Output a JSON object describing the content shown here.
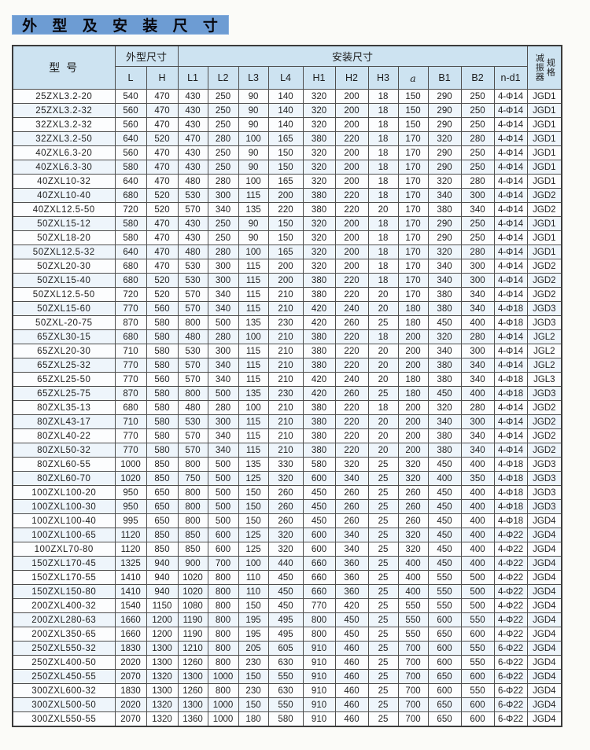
{
  "title": "外 型 及 安 装 尺 寸",
  "table": {
    "header": {
      "model": "型  号",
      "outline_group": "外型尺寸",
      "install_group": "安装尺寸",
      "damper_vertical_left": "减振器",
      "damper_vertical_right": "规格",
      "columns": [
        "L",
        "H",
        "L1",
        "L2",
        "L3",
        "L4",
        "H1",
        "H2",
        "H3",
        "a",
        "B1",
        "B2",
        "n-d1"
      ]
    },
    "rows": [
      [
        "25ZXL3.2-20",
        540,
        470,
        430,
        250,
        90,
        140,
        320,
        200,
        18,
        150,
        290,
        250,
        "4-Φ14",
        "JGD1"
      ],
      [
        "25ZXL3.2-32",
        560,
        470,
        430,
        250,
        90,
        140,
        320,
        200,
        18,
        150,
        290,
        250,
        "4-Φ14",
        "JGD1"
      ],
      [
        "32ZXL3.2-32",
        560,
        470,
        430,
        250,
        90,
        140,
        320,
        200,
        18,
        150,
        290,
        250,
        "4-Φ14",
        "JGD1"
      ],
      [
        "32ZXL3.2-50",
        640,
        520,
        470,
        280,
        100,
        165,
        380,
        220,
        18,
        170,
        320,
        280,
        "4-Φ14",
        "JGD1"
      ],
      [
        "40ZXL6.3-20",
        560,
        470,
        430,
        250,
        90,
        150,
        320,
        200,
        18,
        170,
        290,
        250,
        "4-Φ14",
        "JGD1"
      ],
      [
        "40ZXL6.3-30",
        580,
        470,
        430,
        250,
        90,
        150,
        320,
        200,
        18,
        170,
        290,
        250,
        "4-Φ14",
        "JGD1"
      ],
      [
        "40ZXL10-32",
        640,
        470,
        480,
        280,
        100,
        165,
        320,
        200,
        18,
        170,
        320,
        280,
        "4-Φ14",
        "JGD1"
      ],
      [
        "40ZXL10-40",
        680,
        520,
        530,
        300,
        115,
        200,
        380,
        220,
        18,
        170,
        340,
        300,
        "4-Φ14",
        "JGD2"
      ],
      [
        "40ZXL12.5-50",
        720,
        520,
        570,
        340,
        135,
        220,
        380,
        220,
        20,
        170,
        380,
        340,
        "4-Φ14",
        "JGD2"
      ],
      [
        "50ZXL15-12",
        580,
        470,
        430,
        250,
        90,
        150,
        320,
        200,
        18,
        170,
        290,
        250,
        "4-Φ14",
        "JGD1"
      ],
      [
        "50ZXL18-20",
        580,
        470,
        430,
        250,
        90,
        150,
        320,
        200,
        18,
        170,
        290,
        250,
        "4-Φ14",
        "JGD1"
      ],
      [
        "50ZXL12.5-32",
        640,
        470,
        480,
        280,
        100,
        165,
        320,
        200,
        18,
        170,
        320,
        280,
        "4-Φ14",
        "JGD1"
      ],
      [
        "50ZXL20-30",
        680,
        470,
        530,
        300,
        115,
        200,
        320,
        200,
        18,
        170,
        340,
        300,
        "4-Φ14",
        "JGD2"
      ],
      [
        "50ZXL15-40",
        680,
        520,
        530,
        300,
        115,
        200,
        380,
        220,
        18,
        170,
        340,
        300,
        "4-Φ14",
        "JGD2"
      ],
      [
        "50ZXL12.5-50",
        720,
        520,
        570,
        340,
        115,
        210,
        380,
        220,
        20,
        170,
        380,
        340,
        "4-Φ14",
        "JGD2"
      ],
      [
        "50ZXL15-60",
        770,
        560,
        570,
        340,
        115,
        210,
        420,
        240,
        20,
        180,
        380,
        340,
        "4-Φ18",
        "JGD3"
      ],
      [
        "50ZXL-20-75",
        870,
        580,
        800,
        500,
        135,
        230,
        420,
        260,
        25,
        180,
        450,
        400,
        "4-Φ18",
        "JGD3"
      ],
      [
        "65ZXL30-15",
        680,
        580,
        480,
        280,
        100,
        210,
        380,
        220,
        18,
        200,
        320,
        280,
        "4-Φ14",
        "JGL2"
      ],
      [
        "65ZXL20-30",
        710,
        580,
        530,
        300,
        115,
        210,
        380,
        220,
        20,
        200,
        340,
        300,
        "4-Φ14",
        "JGL2"
      ],
      [
        "65ZXL25-32",
        770,
        580,
        570,
        340,
        115,
        210,
        380,
        220,
        20,
        200,
        380,
        340,
        "4-Φ14",
        "JGL2"
      ],
      [
        "65ZXL25-50",
        770,
        560,
        570,
        340,
        115,
        210,
        420,
        240,
        20,
        180,
        380,
        340,
        "4-Φ18",
        "JGL3"
      ],
      [
        "65ZXL25-75",
        870,
        580,
        800,
        500,
        135,
        230,
        420,
        260,
        25,
        180,
        450,
        400,
        "4-Φ18",
        "JGD3"
      ],
      [
        "80ZXL35-13",
        680,
        580,
        480,
        280,
        100,
        210,
        380,
        220,
        18,
        200,
        320,
        280,
        "4-Φ14",
        "JGD2"
      ],
      [
        "80ZXL43-17",
        710,
        580,
        530,
        300,
        115,
        210,
        380,
        220,
        20,
        200,
        340,
        300,
        "4-Φ14",
        "JGD2"
      ],
      [
        "80ZXL40-22",
        770,
        580,
        570,
        340,
        115,
        210,
        380,
        220,
        20,
        200,
        380,
        340,
        "4-Φ14",
        "JGD2"
      ],
      [
        "80ZXL50-32",
        770,
        580,
        570,
        340,
        115,
        210,
        380,
        220,
        20,
        200,
        380,
        340,
        "4-Φ14",
        "JGD2"
      ],
      [
        "80ZXL60-55",
        1000,
        850,
        800,
        500,
        135,
        330,
        580,
        320,
        25,
        320,
        450,
        400,
        "4-Φ18",
        "JGD3"
      ],
      [
        "80ZXL60-70",
        1020,
        850,
        750,
        500,
        125,
        320,
        600,
        340,
        25,
        320,
        400,
        350,
        "4-Φ18",
        "JGD3"
      ],
      [
        "100ZXL100-20",
        950,
        650,
        800,
        500,
        150,
        260,
        450,
        260,
        25,
        260,
        450,
        400,
        "4-Φ18",
        "JGD3"
      ],
      [
        "100ZXL100-30",
        950,
        650,
        800,
        500,
        150,
        260,
        450,
        260,
        25,
        260,
        450,
        400,
        "4-Φ18",
        "JGD3"
      ],
      [
        "100ZXL100-40",
        995,
        650,
        800,
        500,
        150,
        260,
        450,
        260,
        25,
        260,
        450,
        400,
        "4-Φ18",
        "JGD4"
      ],
      [
        "100ZXL100-65",
        1120,
        850,
        850,
        600,
        125,
        320,
        600,
        340,
        25,
        320,
        450,
        400,
        "4-Φ22",
        "JGD4"
      ],
      [
        "100ZXL70-80",
        1120,
        850,
        850,
        600,
        125,
        320,
        600,
        340,
        25,
        320,
        450,
        400,
        "4-Φ22",
        "JGD4"
      ],
      [
        "150ZXL170-45",
        1325,
        940,
        900,
        700,
        100,
        440,
        660,
        360,
        25,
        400,
        450,
        400,
        "4-Φ22",
        "JGD4"
      ],
      [
        "150ZXL170-55",
        1410,
        940,
        1020,
        800,
        110,
        450,
        660,
        360,
        25,
        400,
        550,
        500,
        "4-Φ22",
        "JGD4"
      ],
      [
        "150ZXL150-80",
        1410,
        940,
        1020,
        800,
        110,
        450,
        660,
        360,
        25,
        400,
        550,
        500,
        "4-Φ22",
        "JGD4"
      ],
      [
        "200ZXL400-32",
        1540,
        1150,
        1080,
        800,
        150,
        450,
        770,
        420,
        25,
        550,
        550,
        500,
        "4-Φ22",
        "JGD4"
      ],
      [
        "200ZXL280-63",
        1660,
        1200,
        1190,
        800,
        195,
        495,
        800,
        450,
        25,
        550,
        600,
        550,
        "4-Φ22",
        "JGD4"
      ],
      [
        "200ZXL350-65",
        1660,
        1200,
        1190,
        800,
        195,
        495,
        800,
        450,
        25,
        550,
        650,
        600,
        "4-Φ22",
        "JGD4"
      ],
      [
        "250ZXL550-32",
        1830,
        1300,
        1210,
        800,
        205,
        605,
        910,
        460,
        25,
        700,
        600,
        550,
        "6-Φ22",
        "JGD4"
      ],
      [
        "250ZXL400-50",
        2020,
        1300,
        1260,
        800,
        230,
        630,
        910,
        460,
        25,
        700,
        600,
        550,
        "6-Φ22",
        "JGD4"
      ],
      [
        "250ZXL450-55",
        2070,
        1320,
        1300,
        1000,
        150,
        550,
        910,
        460,
        25,
        700,
        650,
        600,
        "6-Φ22",
        "JGD4"
      ],
      [
        "300ZXL600-32",
        1830,
        1300,
        1260,
        800,
        230,
        630,
        910,
        460,
        25,
        700,
        600,
        550,
        "6-Φ22",
        "JGD4"
      ],
      [
        "300ZXL500-50",
        2020,
        1320,
        1300,
        1000,
        150,
        550,
        910,
        460,
        25,
        700,
        650,
        600,
        "6-Φ22",
        "JGD4"
      ],
      [
        "300ZXL550-55",
        2070,
        1320,
        1360,
        1000,
        180,
        580,
        910,
        460,
        25,
        700,
        650,
        600,
        "6-Φ22",
        "JGD4"
      ]
    ]
  }
}
